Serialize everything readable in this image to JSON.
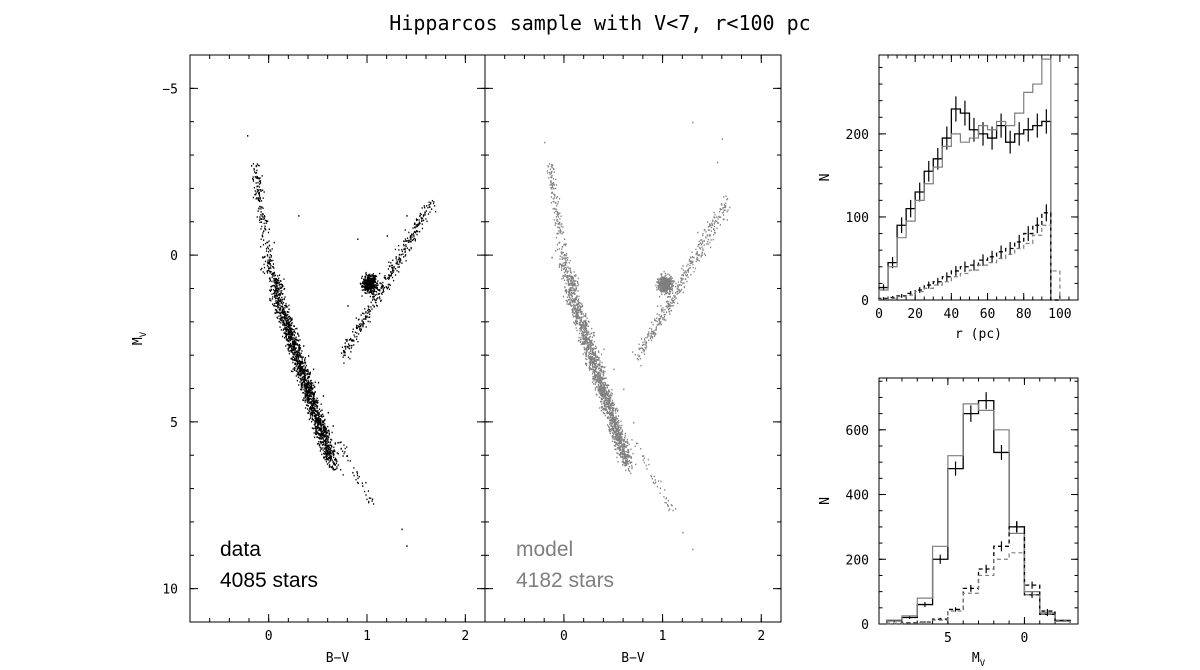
{
  "page": {
    "title": "Hipparcos sample with V<7, r<100 pc"
  },
  "colors": {
    "data": "#000000",
    "model": "#7f7f7f",
    "frame": "#000000"
  },
  "chart_data": [
    {
      "id": "cmd-data",
      "type": "scatter",
      "xlabel": "B−V",
      "ylabel": "M",
      "ylabel_sub": "V",
      "xlim": [
        -0.8,
        2.2
      ],
      "ylim": [
        11,
        -6
      ],
      "y_inverted": true,
      "xticks": [
        "0",
        "1",
        "2"
      ],
      "yticks": [
        "−5",
        "0",
        "5",
        "10"
      ],
      "legend": {
        "label": "data",
        "count_label": "4085 stars",
        "color": "#000000"
      },
      "series": [
        {
          "name": "data",
          "points": [
            [
              -0.22,
              -3.6
            ],
            [
              -0.18,
              -2.7
            ],
            [
              -0.1,
              -1.8
            ],
            [
              -0.05,
              -1.2
            ],
            [
              0.0,
              -0.8
            ],
            [
              0.05,
              -0.4
            ],
            [
              0.0,
              0.2
            ],
            [
              0.05,
              0.5
            ],
            [
              0.1,
              0.8
            ],
            [
              0.12,
              1.1
            ],
            [
              0.15,
              1.3
            ],
            [
              0.2,
              1.6
            ],
            [
              0.22,
              1.9
            ],
            [
              0.25,
              2.1
            ],
            [
              0.3,
              2.4
            ],
            [
              0.35,
              2.7
            ],
            [
              0.4,
              3.0
            ],
            [
              0.45,
              3.4
            ],
            [
              0.5,
              3.8
            ],
            [
              0.55,
              4.2
            ],
            [
              0.6,
              4.7
            ],
            [
              0.65,
              5.1
            ],
            [
              0.7,
              5.6
            ],
            [
              0.75,
              6.0
            ],
            [
              0.85,
              6.5
            ],
            [
              0.95,
              6.9
            ],
            [
              1.05,
              7.3
            ],
            [
              1.35,
              8.2
            ],
            [
              1.4,
              8.7
            ],
            [
              0.95,
              0.8
            ],
            [
              1.0,
              0.7
            ],
            [
              1.05,
              0.9
            ],
            [
              1.1,
              1.0
            ],
            [
              0.9,
              -0.5
            ],
            [
              1.2,
              -0.6
            ],
            [
              1.4,
              -1.2
            ],
            [
              1.6,
              -1.5
            ],
            [
              1.65,
              -1.4
            ],
            [
              0.3,
              -1.2
            ],
            [
              0.8,
              1.5
            ]
          ]
        }
      ]
    },
    {
      "id": "cmd-model",
      "type": "scatter",
      "xlabel": "B−V",
      "xlim": [
        -0.8,
        2.2
      ],
      "ylim": [
        11,
        -6
      ],
      "y_inverted": true,
      "xticks": [
        "0",
        "1",
        "2"
      ],
      "legend": {
        "label": "model",
        "count_label": "4182 stars",
        "color": "#7f7f7f"
      },
      "series": [
        {
          "name": "model",
          "points": [
            [
              -0.2,
              -3.4
            ],
            [
              -0.15,
              -2.5
            ],
            [
              -0.1,
              -1.8
            ],
            [
              -0.05,
              -1.0
            ],
            [
              0.0,
              -0.5
            ],
            [
              0.02,
              0.2
            ],
            [
              0.05,
              0.6
            ],
            [
              0.1,
              1.0
            ],
            [
              0.15,
              1.4
            ],
            [
              0.2,
              1.8
            ],
            [
              0.3,
              2.3
            ],
            [
              0.4,
              2.8
            ],
            [
              0.5,
              3.4
            ],
            [
              0.6,
              4.0
            ],
            [
              0.7,
              5.0
            ],
            [
              0.8,
              6.0
            ],
            [
              0.9,
              6.8
            ],
            [
              1.05,
              7.5
            ],
            [
              1.2,
              8.3
            ],
            [
              1.3,
              8.8
            ],
            [
              0.95,
              0.8
            ],
            [
              1.0,
              0.9
            ],
            [
              1.05,
              1.0
            ],
            [
              1.1,
              0.8
            ],
            [
              1.2,
              0.3
            ],
            [
              1.35,
              -0.7
            ],
            [
              1.55,
              -2.8
            ],
            [
              1.6,
              -3.5
            ],
            [
              1.3,
              -4.0
            ]
          ]
        }
      ]
    },
    {
      "id": "hist-r",
      "type": "line",
      "xlabel": "r (pc)",
      "ylabel": "N",
      "xlim": [
        0,
        110
      ],
      "ylim": [
        0,
        295
      ],
      "xticks": [
        "0",
        "20",
        "40",
        "60",
        "80",
        "100"
      ],
      "yticks": [
        "0",
        "100",
        "200"
      ],
      "x": [
        2.5,
        7.5,
        12.5,
        17.5,
        22.5,
        27.5,
        32.5,
        37.5,
        42.5,
        47.5,
        52.5,
        57.5,
        62.5,
        67.5,
        72.5,
        77.5,
        82.5,
        87.5,
        92.5,
        97.5
      ],
      "series": [
        {
          "name": "data",
          "style": "black-errorbars",
          "values": [
            15,
            45,
            90,
            110,
            130,
            155,
            170,
            195,
            230,
            225,
            205,
            200,
            195,
            210,
            190,
            200,
            205,
            210,
            215,
            0
          ]
        },
        {
          "name": "model",
          "style": "gray-step",
          "values": [
            12,
            40,
            75,
            95,
            120,
            140,
            160,
            185,
            200,
            190,
            195,
            210,
            205,
            215,
            210,
            225,
            250,
            260,
            290,
            0
          ]
        },
        {
          "name": "data-subset",
          "style": "black-dashed-errorbars",
          "values": [
            2,
            3,
            5,
            8,
            12,
            18,
            22,
            28,
            35,
            40,
            42,
            48,
            52,
            58,
            62,
            70,
            80,
            90,
            105,
            0
          ]
        },
        {
          "name": "model-subset",
          "style": "gray-dashed-step",
          "values": [
            1,
            2,
            4,
            6,
            10,
            14,
            18,
            22,
            28,
            32,
            36,
            42,
            45,
            50,
            55,
            62,
            68,
            78,
            90,
            35
          ]
        }
      ]
    },
    {
      "id": "hist-mv",
      "type": "line",
      "xlabel": "M",
      "xlabel_sub": "V",
      "ylabel": "N",
      "xlim": [
        9.5,
        -3.5
      ],
      "ylim": [
        0,
        760
      ],
      "xticks": [
        "5",
        "0"
      ],
      "yticks": [
        "0",
        "200",
        "400",
        "600"
      ],
      "x": [
        8.5,
        7.5,
        6.5,
        5.5,
        4.5,
        3.5,
        2.5,
        1.5,
        0.5,
        -0.5,
        -1.5,
        -2.5
      ],
      "series": [
        {
          "name": "data",
          "style": "black-errorbars",
          "values": [
            10,
            20,
            60,
            200,
            480,
            650,
            690,
            530,
            300,
            90,
            30,
            10
          ]
        },
        {
          "name": "model",
          "style": "gray-step",
          "values": [
            12,
            25,
            80,
            240,
            520,
            680,
            660,
            600,
            280,
            100,
            35,
            12
          ]
        },
        {
          "name": "data-subset",
          "style": "black-dashed-errorbars",
          "values": [
            2,
            4,
            6,
            15,
            45,
            110,
            170,
            240,
            300,
            120,
            40,
            10
          ]
        },
        {
          "name": "model-subset",
          "style": "gray-dashed-step",
          "values": [
            1,
            3,
            5,
            12,
            40,
            95,
            150,
            200,
            220,
            90,
            30,
            8
          ]
        }
      ]
    }
  ]
}
